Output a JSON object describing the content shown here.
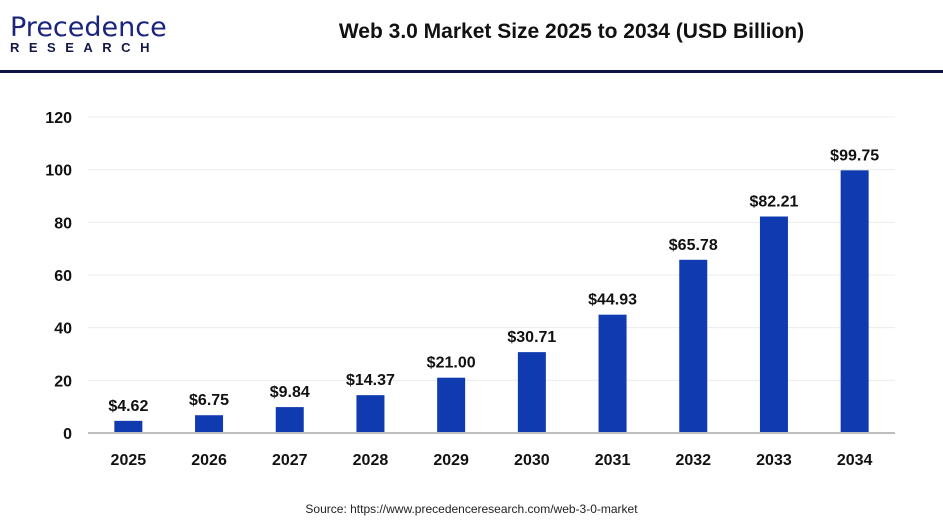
{
  "logo": {
    "brand": "Precedence",
    "sub": "RESEARCH"
  },
  "header": {
    "title": "Web 3.0 Market Size 2025 to 2034 (USD Billion)"
  },
  "source": "Source: https://www.precedenceresearch.com/web-3-0-market",
  "colors": {
    "bar": "#0f3ab0",
    "header_rule": "#0f1445"
  },
  "chart_data": {
    "type": "bar",
    "title": "Web 3.0 Market Size 2025 to 2034 (USD Billion)",
    "categories": [
      "2025",
      "2026",
      "2027",
      "2028",
      "2029",
      "2030",
      "2031",
      "2032",
      "2033",
      "2034"
    ],
    "values": [
      4.62,
      6.75,
      9.84,
      14.37,
      21.0,
      30.71,
      44.93,
      65.78,
      82.21,
      99.75
    ],
    "data_labels": [
      "$4.62",
      "$6.75",
      "$9.84",
      "$14.37",
      "$21.00",
      "$30.71",
      "$44.93",
      "$65.78",
      "$82.21",
      "$99.75"
    ],
    "ylim": [
      0,
      120
    ],
    "yticks": [
      0,
      20,
      40,
      60,
      80,
      100,
      120
    ],
    "xlabel": "",
    "ylabel": "",
    "grid": true,
    "legend": "none"
  }
}
